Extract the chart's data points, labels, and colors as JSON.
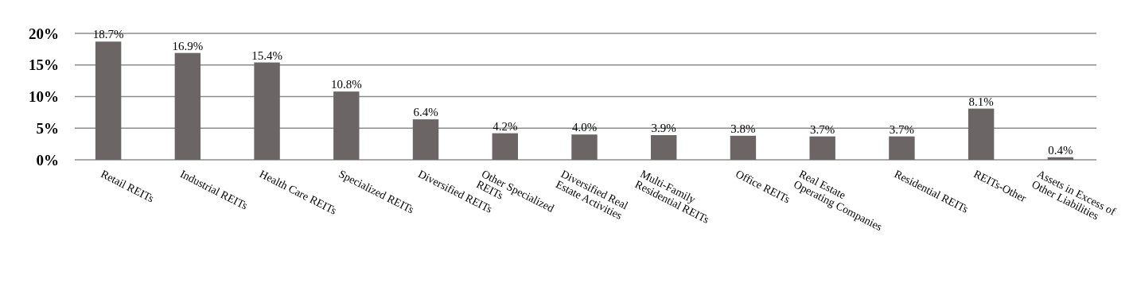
{
  "chart_data": {
    "type": "bar",
    "categories": [
      "Retail REITs",
      "Industrial REITs",
      "Health Care REITs",
      "Specialized REITs",
      "Diversified REITs",
      "Other Specialized\nREITs",
      "Diversified Real\nEstate Activities",
      "Multi-Family\nResidential REITs",
      "Office REITs",
      "Real Estate\nOperating Companies",
      "Residential REITs",
      "REITs-Other",
      "Assets in Excess of\nOther Liabilities"
    ],
    "values": [
      18.7,
      16.9,
      15.4,
      10.8,
      6.4,
      4.2,
      4.0,
      3.9,
      3.8,
      3.7,
      3.7,
      8.1,
      0.4
    ],
    "color": "#6b6566",
    "ylim": [
      0,
      20
    ],
    "yticks": [
      {
        "value": 0,
        "label": "0%"
      },
      {
        "value": 5,
        "label": "5%"
      },
      {
        "value": 10,
        "label": "10%"
      },
      {
        "value": 15,
        "label": "15%"
      },
      {
        "value": 20,
        "label": "20%"
      }
    ],
    "value_labels": [
      "18.7%",
      "16.9%",
      "15.4%",
      "10.8%",
      "6.4%",
      "4.2%",
      "4.0%",
      "3.9%",
      "3.8%",
      "3.7%",
      "3.7%",
      "8.1%",
      "0.4%"
    ],
    "grid": "y"
  }
}
